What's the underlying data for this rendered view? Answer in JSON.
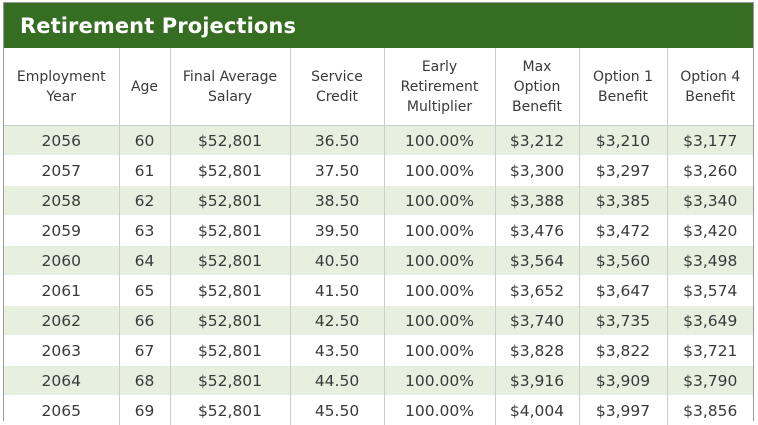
{
  "title": "Retirement Projections",
  "columns": [
    "Employment Year",
    "Age",
    "Final Average Salary",
    "Service Credit",
    "Early Retirement Multiplier",
    "Max Option Benefit",
    "Option 1 Benefit",
    "Option 4 Benefit"
  ],
  "rows": [
    [
      "2056",
      "60",
      "$52,801",
      "36.50",
      "100.00%",
      "$3,212",
      "$3,210",
      "$3,177"
    ],
    [
      "2057",
      "61",
      "$52,801",
      "37.50",
      "100.00%",
      "$3,300",
      "$3,297",
      "$3,260"
    ],
    [
      "2058",
      "62",
      "$52,801",
      "38.50",
      "100.00%",
      "$3,388",
      "$3,385",
      "$3,340"
    ],
    [
      "2059",
      "63",
      "$52,801",
      "39.50",
      "100.00%",
      "$3,476",
      "$3,472",
      "$3,420"
    ],
    [
      "2060",
      "64",
      "$52,801",
      "40.50",
      "100.00%",
      "$3,564",
      "$3,560",
      "$3,498"
    ],
    [
      "2061",
      "65",
      "$52,801",
      "41.50",
      "100.00%",
      "$3,652",
      "$3,647",
      "$3,574"
    ],
    [
      "2062",
      "66",
      "$52,801",
      "42.50",
      "100.00%",
      "$3,740",
      "$3,735",
      "$3,649"
    ],
    [
      "2063",
      "67",
      "$52,801",
      "43.50",
      "100.00%",
      "$3,828",
      "$3,822",
      "$3,721"
    ],
    [
      "2064",
      "68",
      "$52,801",
      "44.50",
      "100.00%",
      "$3,916",
      "$3,909",
      "$3,790"
    ],
    [
      "2065",
      "69",
      "$52,801",
      "45.50",
      "100.00%",
      "$4,004",
      "$3,997",
      "$3,856"
    ]
  ],
  "colors": {
    "header_bg": "#356d22",
    "stripe_bg": "#e7f0df",
    "text": "#3a3a3a"
  }
}
